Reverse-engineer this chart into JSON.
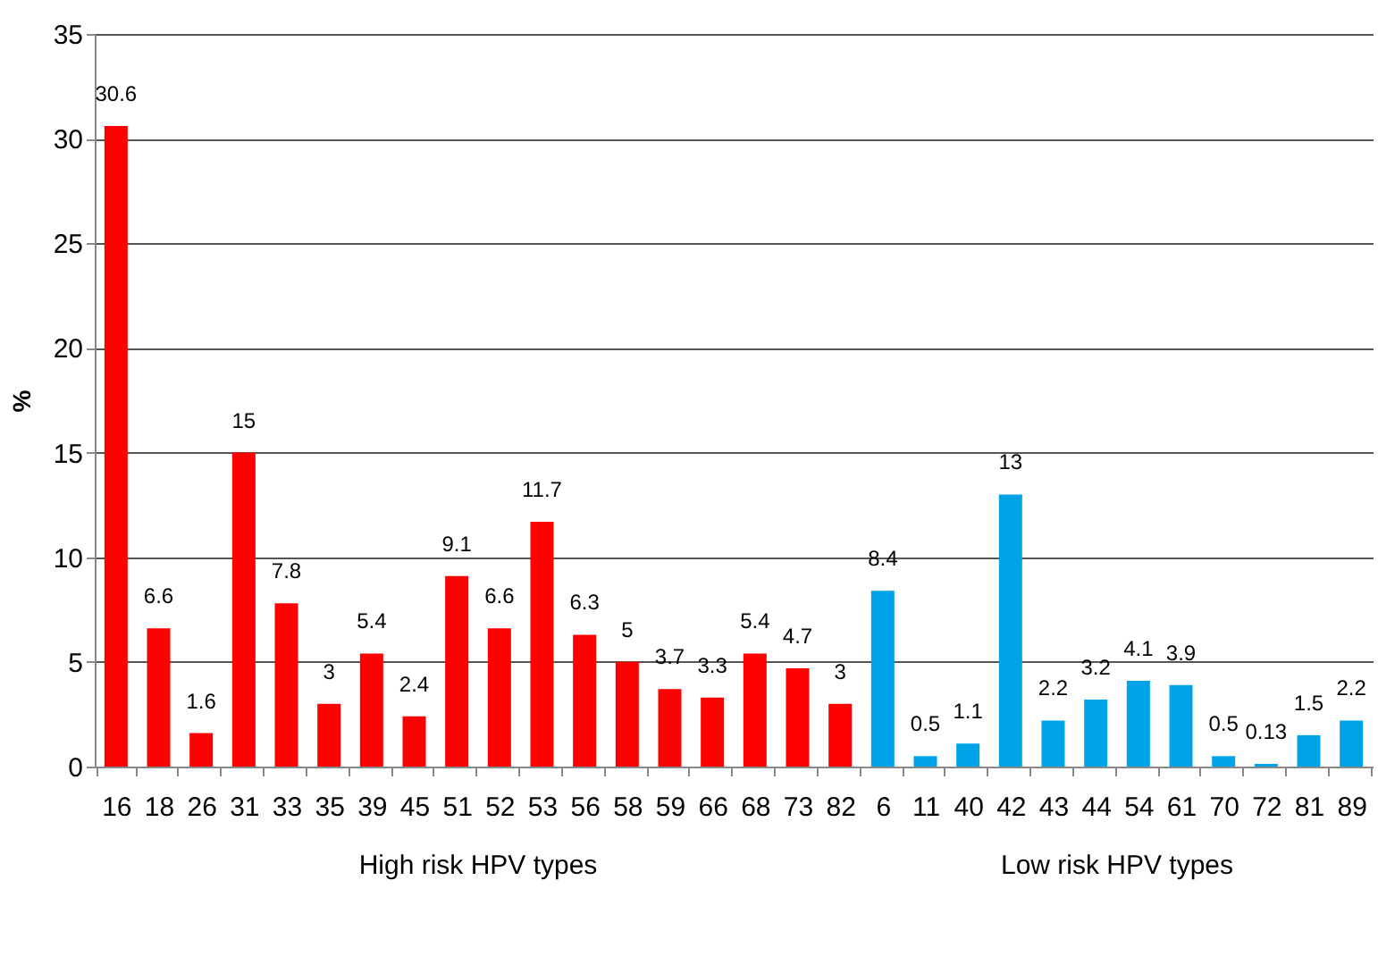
{
  "chart_data": {
    "type": "bar",
    "ylabel": "%",
    "annotations": [
      "High risk HPV types",
      "Low risk HPV types"
    ],
    "categories": [
      "16",
      "18",
      "26",
      "31",
      "33",
      "35",
      "39",
      "45",
      "51",
      "52",
      "53",
      "56",
      "58",
      "59",
      "66",
      "68",
      "73",
      "82",
      "6",
      "11",
      "40",
      "42",
      "43",
      "44",
      "54",
      "61",
      "70",
      "72",
      "81",
      "89"
    ],
    "series": [
      {
        "color": "#ff0000",
        "values": [
          30.6,
          6.6,
          1.6,
          15,
          7.8,
          3,
          5.4,
          2.4,
          9.1,
          6.6,
          11.7,
          6.3,
          5,
          3.7,
          3.3,
          5.4,
          4.7,
          3,
          null,
          null,
          null,
          null,
          null,
          null,
          null,
          null,
          null,
          null,
          null,
          null
        ]
      },
      {
        "color": "#00a2e8",
        "values": [
          null,
          null,
          null,
          null,
          null,
          null,
          null,
          null,
          null,
          null,
          null,
          null,
          null,
          null,
          null,
          null,
          null,
          null,
          8.4,
          0.5,
          1.1,
          13,
          2.2,
          3.2,
          4.1,
          3.9,
          0.5,
          0.13,
          1.5,
          2.2
        ]
      }
    ],
    "ylim": [
      0,
      35
    ],
    "yticks": [
      0,
      5,
      10,
      15,
      20,
      25,
      30,
      35
    ],
    "grid": "y",
    "data_labels": true,
    "legend": false
  }
}
